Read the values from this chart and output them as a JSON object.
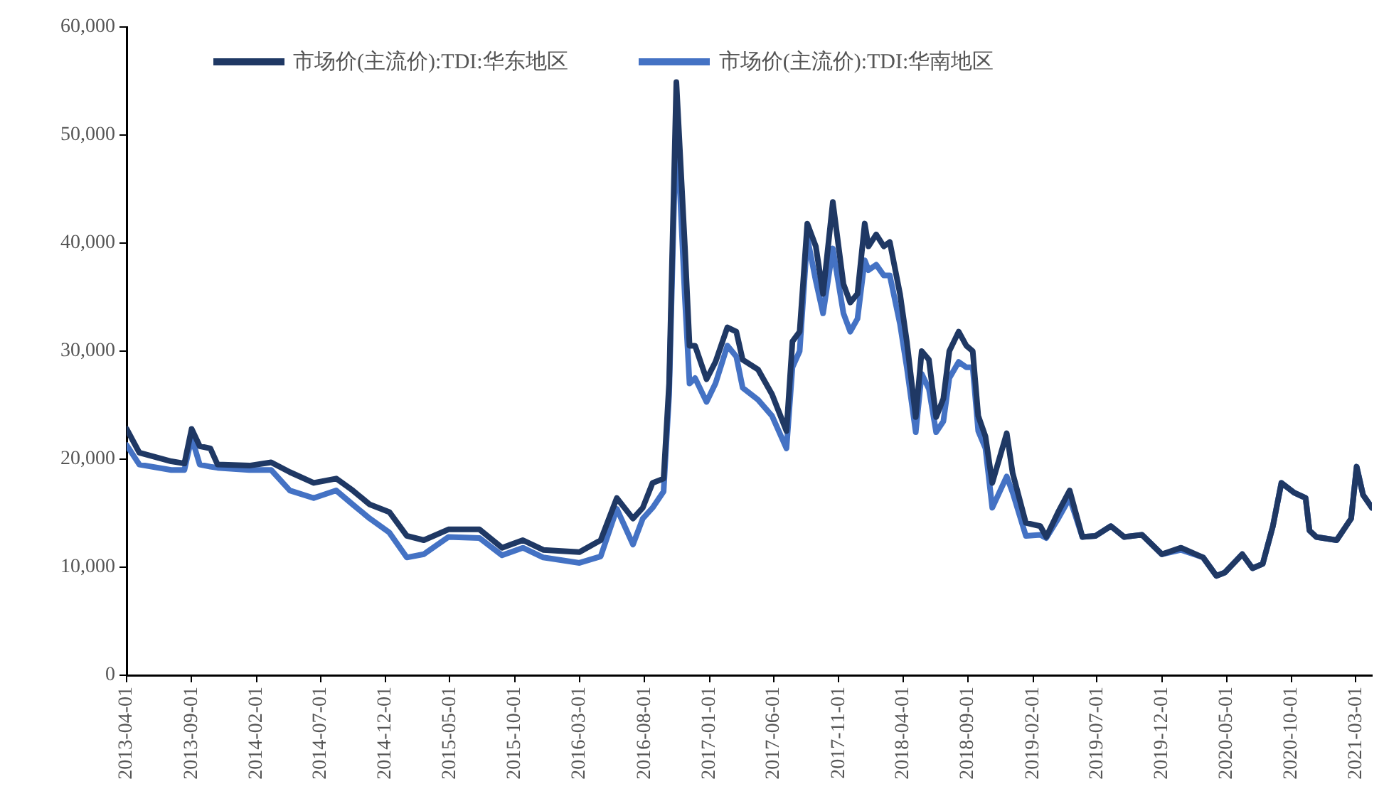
{
  "chart_data": {
    "type": "line",
    "legend": "top",
    "line_style": "solid",
    "marker": "none",
    "x": [
      "2013-04-01",
      "2013-05-01",
      "2013-07-15",
      "2013-08-15",
      "2013-09-01",
      "2013-09-20",
      "2013-10-15",
      "2013-11-01",
      "2014-01-15",
      "2014-03-07",
      "2014-04-20",
      "2014-06-15",
      "2014-08-07",
      "2014-09-15",
      "2014-10-25",
      "2014-12-10",
      "2015-01-20",
      "2015-03-01",
      "2015-04-28",
      "2015-07-10",
      "2015-09-01",
      "2015-10-20",
      "2015-12-07",
      "2016-03-01",
      "2016-04-20",
      "2016-05-28",
      "2016-07-05",
      "2016-07-28",
      "2016-08-20",
      "2016-09-15",
      "2016-09-28",
      "2016-10-15",
      "2016-11-04",
      "2016-11-15",
      "2016-11-28",
      "2016-12-25",
      "2017-01-15",
      "2017-02-12",
      "2017-03-05",
      "2017-03-20",
      "2017-04-25",
      "2017-05-28",
      "2017-07-01",
      "2017-07-15",
      "2017-08-01",
      "2017-08-19",
      "2017-09-08",
      "2017-09-25",
      "2017-10-18",
      "2017-11-12",
      "2017-11-28",
      "2017-12-15",
      "2018-01-01",
      "2018-01-10",
      "2018-01-28",
      "2018-02-15",
      "2018-03-01",
      "2018-03-25",
      "2018-04-10",
      "2018-05-01",
      "2018-05-15",
      "2018-06-01",
      "2018-06-18",
      "2018-07-05",
      "2018-07-19",
      "2018-08-10",
      "2018-08-28",
      "2018-09-12",
      "2018-09-25",
      "2018-10-12",
      "2018-10-28",
      "2018-12-01",
      "2018-12-15",
      "2019-01-15",
      "2019-02-18",
      "2019-03-04",
      "2019-04-01",
      "2019-04-28",
      "2019-05-28",
      "2019-06-28",
      "2019-08-03",
      "2019-09-03",
      "2019-10-15",
      "2019-12-01",
      "2020-01-15",
      "2020-03-07",
      "2020-04-07",
      "2020-04-27",
      "2020-06-07",
      "2020-07-01",
      "2020-07-25",
      "2020-08-18",
      "2020-09-07",
      "2020-10-07",
      "2020-11-03",
      "2020-11-12",
      "2020-11-28",
      "2021-01-15",
      "2021-02-18",
      "2021-03-03",
      "2021-03-18",
      "2021-04-08"
    ],
    "series": [
      {
        "name": "市场价(主流价):TDI:华东地区",
        "color": "#1f3864",
        "values": [
          22800,
          20600,
          19800,
          19600,
          22800,
          21200,
          21000,
          19500,
          19400,
          19700,
          18800,
          17800,
          18200,
          17100,
          15800,
          15100,
          12900,
          12500,
          13500,
          13500,
          11800,
          12500,
          11600,
          11400,
          12500,
          16400,
          14500,
          15500,
          17800,
          18200,
          27000,
          54900,
          39700,
          30500,
          30500,
          27400,
          29000,
          32200,
          31800,
          29200,
          28300,
          26000,
          22600,
          30900,
          31800,
          41800,
          39700,
          35300,
          43800,
          36200,
          34500,
          35300,
          41800,
          39700,
          40800,
          39700,
          40100,
          35300,
          30900,
          23900,
          30000,
          29200,
          23900,
          25600,
          30000,
          31800,
          30500,
          30000,
          24000,
          22100,
          17800,
          22400,
          18700,
          14100,
          13800,
          12800,
          15100,
          17100,
          12800,
          12900,
          13800,
          12800,
          13000,
          11200,
          11800,
          10900,
          9200,
          9500,
          11200,
          9900,
          10300,
          13800,
          17800,
          16900,
          16400,
          13400,
          12800,
          12500,
          14500,
          19300,
          16700,
          15500
        ]
      },
      {
        "name": "市场价(主流价):TDI:华南地区",
        "color": "#4472c4",
        "values": [
          21300,
          19500,
          19000,
          19000,
          22000,
          19500,
          19300,
          19200,
          19000,
          19000,
          17100,
          16400,
          17100,
          15800,
          14500,
          13200,
          10900,
          11200,
          12800,
          12700,
          11100,
          11800,
          10900,
          10400,
          11000,
          15400,
          12100,
          14500,
          15500,
          17000,
          26000,
          52000,
          35000,
          27000,
          27500,
          25300,
          27000,
          30500,
          29500,
          26600,
          25500,
          24000,
          21000,
          28500,
          30000,
          40500,
          36500,
          33500,
          39500,
          33500,
          31800,
          33000,
          38400,
          37500,
          38000,
          37000,
          37000,
          32500,
          28500,
          22500,
          27900,
          26500,
          22500,
          23500,
          27500,
          29000,
          28500,
          28500,
          22600,
          21000,
          15500,
          18400,
          16900,
          12900,
          13000,
          12700,
          14500,
          16400,
          12800,
          12900,
          13800,
          12800,
          13000,
          11200,
          11600,
          10900,
          9200,
          9500,
          11200,
          9900,
          10300,
          13800,
          17800,
          16900,
          16400,
          13400,
          12800,
          12500,
          14500,
          19300,
          16700,
          15500
        ]
      }
    ],
    "xlim": [
      "2013-04-01",
      "2021-04-08"
    ],
    "xticks": [
      "2013-04-01",
      "2013-09-01",
      "2014-02-01",
      "2014-07-01",
      "2014-12-01",
      "2015-05-01",
      "2015-10-01",
      "2016-03-01",
      "2016-08-01",
      "2017-01-01",
      "2017-06-01",
      "2017-11-01",
      "2018-04-01",
      "2018-09-01",
      "2019-02-01",
      "2019-07-01",
      "2019-12-01",
      "2020-05-01",
      "2020-10-01",
      "2021-03-01"
    ],
    "ylim": [
      0,
      60000
    ],
    "yticks": [
      0,
      {
        "value": 10000,
        "label": "10,000"
      },
      {
        "value": 20000,
        "label": "20,000"
      },
      {
        "value": 30000,
        "label": "30,000"
      },
      {
        "value": 40000,
        "label": "40,000"
      },
      {
        "value": 50000,
        "label": "50,000"
      },
      {
        "value": 60000,
        "label": "60,000"
      }
    ]
  }
}
